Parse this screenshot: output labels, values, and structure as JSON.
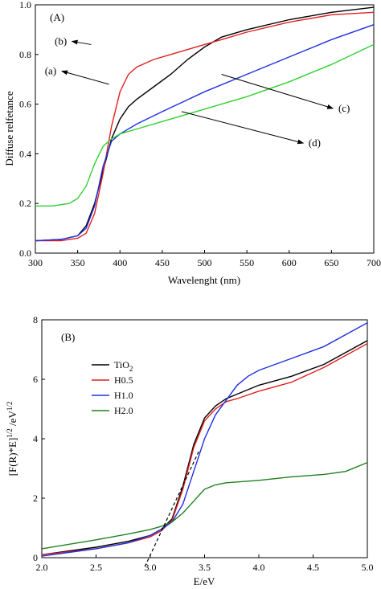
{
  "chart_data": [
    {
      "type": "line",
      "panel_label": "(A)",
      "xlabel": "Wavelenght (nm)",
      "ylabel": "Diffuse relfetance",
      "xlim": [
        300,
        700
      ],
      "ylim": [
        0,
        1.0
      ],
      "x_ticks": [
        "300",
        "350",
        "400",
        "450",
        "500",
        "550",
        "600",
        "650",
        "700"
      ],
      "y_ticks": [
        "0.0",
        "0.2",
        "0.4",
        "0.6",
        "0.8",
        "1.0"
      ],
      "series": [
        {
          "color": "#000000",
          "x": [
            300,
            330,
            350,
            360,
            370,
            380,
            390,
            400,
            410,
            420,
            440,
            460,
            480,
            500,
            520,
            550,
            600,
            650,
            700
          ],
          "y": [
            0.05,
            0.055,
            0.07,
            0.11,
            0.2,
            0.33,
            0.46,
            0.54,
            0.59,
            0.62,
            0.67,
            0.72,
            0.78,
            0.83,
            0.87,
            0.9,
            0.94,
            0.97,
            0.99
          ]
        },
        {
          "color": "#e02020",
          "x": [
            300,
            330,
            350,
            360,
            370,
            380,
            390,
            400,
            410,
            420,
            440,
            460,
            480,
            500,
            520,
            550,
            600,
            650,
            700
          ],
          "y": [
            0.05,
            0.05,
            0.06,
            0.08,
            0.16,
            0.32,
            0.51,
            0.65,
            0.72,
            0.75,
            0.78,
            0.8,
            0.82,
            0.84,
            0.86,
            0.89,
            0.93,
            0.96,
            0.97
          ]
        },
        {
          "color": "#2030e0",
          "x": [
            300,
            330,
            350,
            360,
            370,
            380,
            390,
            400,
            420,
            450,
            500,
            550,
            600,
            650,
            700
          ],
          "y": [
            0.05,
            0.055,
            0.07,
            0.1,
            0.19,
            0.35,
            0.45,
            0.48,
            0.52,
            0.57,
            0.65,
            0.72,
            0.79,
            0.86,
            0.92
          ]
        },
        {
          "color": "#30d030",
          "x": [
            300,
            320,
            340,
            350,
            360,
            370,
            380,
            390,
            400,
            420,
            450,
            500,
            550,
            600,
            650,
            700
          ],
          "y": [
            0.19,
            0.19,
            0.2,
            0.22,
            0.27,
            0.36,
            0.43,
            0.46,
            0.48,
            0.5,
            0.53,
            0.58,
            0.63,
            0.69,
            0.76,
            0.84
          ]
        }
      ],
      "annotations": [
        {
          "text": "(a)",
          "x": 318,
          "y": 0.72,
          "arrow_to": [
            387,
            0.68
          ]
        },
        {
          "text": "(b)",
          "x": 330,
          "y": 0.84,
          "arrow_to": [
            366,
            0.84
          ]
        },
        {
          "text": "(c)",
          "x": 665,
          "y": 0.57,
          "arrow_to": [
            520,
            0.72
          ]
        },
        {
          "text": "(d)",
          "x": 630,
          "y": 0.43,
          "arrow_to": [
            473,
            0.57
          ]
        }
      ]
    },
    {
      "type": "line",
      "panel_label": "(B)",
      "xlabel": "E/eV",
      "ylabel_parts": {
        "main": "[F(R)*E]",
        "exp": "1/2",
        "unit": " /eV",
        "unit_exp": "1/2"
      },
      "xlim": [
        2.0,
        5.0
      ],
      "ylim": [
        0,
        8
      ],
      "x_ticks": [
        "2.0",
        "2.5",
        "3.0",
        "3.5",
        "4.0",
        "4.5",
        "5.0"
      ],
      "y_ticks": [
        "0",
        "2",
        "4",
        "6",
        "8"
      ],
      "legend": [
        {
          "label": "TiO",
          "sub": "2",
          "color": "#000000"
        },
        {
          "label": "H0.5",
          "sub": "",
          "color": "#e02020"
        },
        {
          "label": "H1.0",
          "sub": "",
          "color": "#2030e0"
        },
        {
          "label": "H2.0",
          "sub": "",
          "color": "#208020"
        }
      ],
      "series": [
        {
          "color": "#000000",
          "x": [
            2.0,
            2.5,
            2.8,
            3.0,
            3.1,
            3.2,
            3.3,
            3.4,
            3.5,
            3.6,
            3.7,
            3.8,
            4.0,
            4.3,
            4.6,
            5.0
          ],
          "y": [
            0.1,
            0.35,
            0.55,
            0.75,
            0.95,
            1.3,
            2.4,
            3.8,
            4.7,
            5.1,
            5.35,
            5.5,
            5.8,
            6.1,
            6.5,
            7.3
          ]
        },
        {
          "color": "#e02020",
          "x": [
            2.0,
            2.5,
            2.8,
            3.0,
            3.1,
            3.2,
            3.3,
            3.4,
            3.5,
            3.6,
            3.7,
            3.8,
            4.0,
            4.3,
            4.6,
            5.0
          ],
          "y": [
            0.1,
            0.3,
            0.5,
            0.7,
            0.9,
            1.25,
            2.3,
            3.7,
            4.6,
            5.0,
            5.25,
            5.35,
            5.6,
            5.9,
            6.4,
            7.2
          ]
        },
        {
          "color": "#2030e0",
          "x": [
            2.0,
            2.5,
            2.8,
            3.0,
            3.1,
            3.2,
            3.3,
            3.4,
            3.5,
            3.6,
            3.7,
            3.8,
            3.9,
            4.0,
            4.3,
            4.6,
            5.0
          ],
          "y": [
            0.05,
            0.3,
            0.5,
            0.75,
            0.95,
            1.2,
            1.8,
            2.9,
            4.0,
            4.8,
            5.3,
            5.8,
            6.1,
            6.3,
            6.7,
            7.1,
            7.9
          ]
        },
        {
          "color": "#208020",
          "x": [
            2.0,
            2.5,
            2.8,
            3.0,
            3.1,
            3.2,
            3.3,
            3.4,
            3.5,
            3.6,
            3.7,
            4.0,
            4.3,
            4.6,
            4.8,
            5.0
          ],
          "y": [
            0.3,
            0.6,
            0.8,
            0.95,
            1.05,
            1.2,
            1.5,
            1.9,
            2.3,
            2.45,
            2.52,
            2.6,
            2.72,
            2.8,
            2.9,
            3.2
          ]
        }
      ],
      "tangent": {
        "x": [
          2.95,
          3.45
        ],
        "y": [
          -0.3,
          3.6
        ],
        "color": "#000000"
      }
    }
  ]
}
